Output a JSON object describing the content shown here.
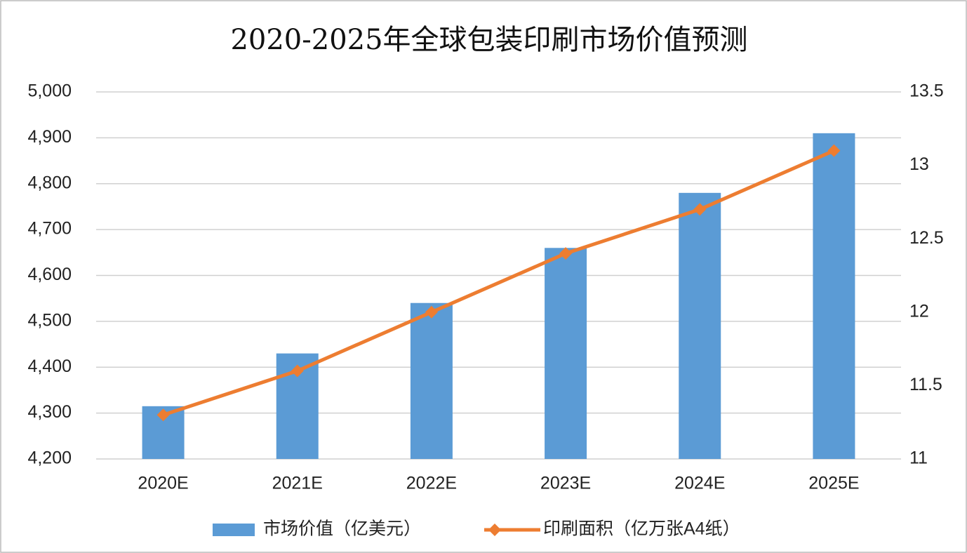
{
  "chart_data": {
    "type": "bar",
    "title": "2020-2025年全球包装印刷市场价值预测",
    "categories": [
      "2020E",
      "2021E",
      "2022E",
      "2023E",
      "2024E",
      "2025E"
    ],
    "series": [
      {
        "name": "市场价值（亿美元）",
        "type": "bar",
        "color": "#5b9bd5",
        "values": [
          4315,
          4430,
          4540,
          4660,
          4780,
          4910
        ]
      },
      {
        "name": "印刷面积（亿万张A4纸）",
        "type": "line",
        "axis": "y2",
        "color": "#ed7d31",
        "values": [
          11.3,
          11.6,
          12.0,
          12.4,
          12.7,
          13.1
        ]
      }
    ],
    "ylim": [
      4200,
      5000
    ],
    "yticks": [
      {
        "value": 4200,
        "label": "4,200"
      },
      {
        "value": 4300,
        "label": "4,300"
      },
      {
        "value": 4400,
        "label": "4,400"
      },
      {
        "value": 4500,
        "label": "4,500"
      },
      {
        "value": 4600,
        "label": "4,600"
      },
      {
        "value": 4700,
        "label": "4,700"
      },
      {
        "value": 4800,
        "label": "4,800"
      },
      {
        "value": 4900,
        "label": "4,900"
      },
      {
        "value": 5000,
        "label": "5,000"
      }
    ],
    "y2lim": [
      11,
      13.5
    ],
    "y2ticks": [
      11,
      11.5,
      12,
      12.5,
      13,
      13.5
    ],
    "grid": true,
    "legend": "bottom"
  }
}
